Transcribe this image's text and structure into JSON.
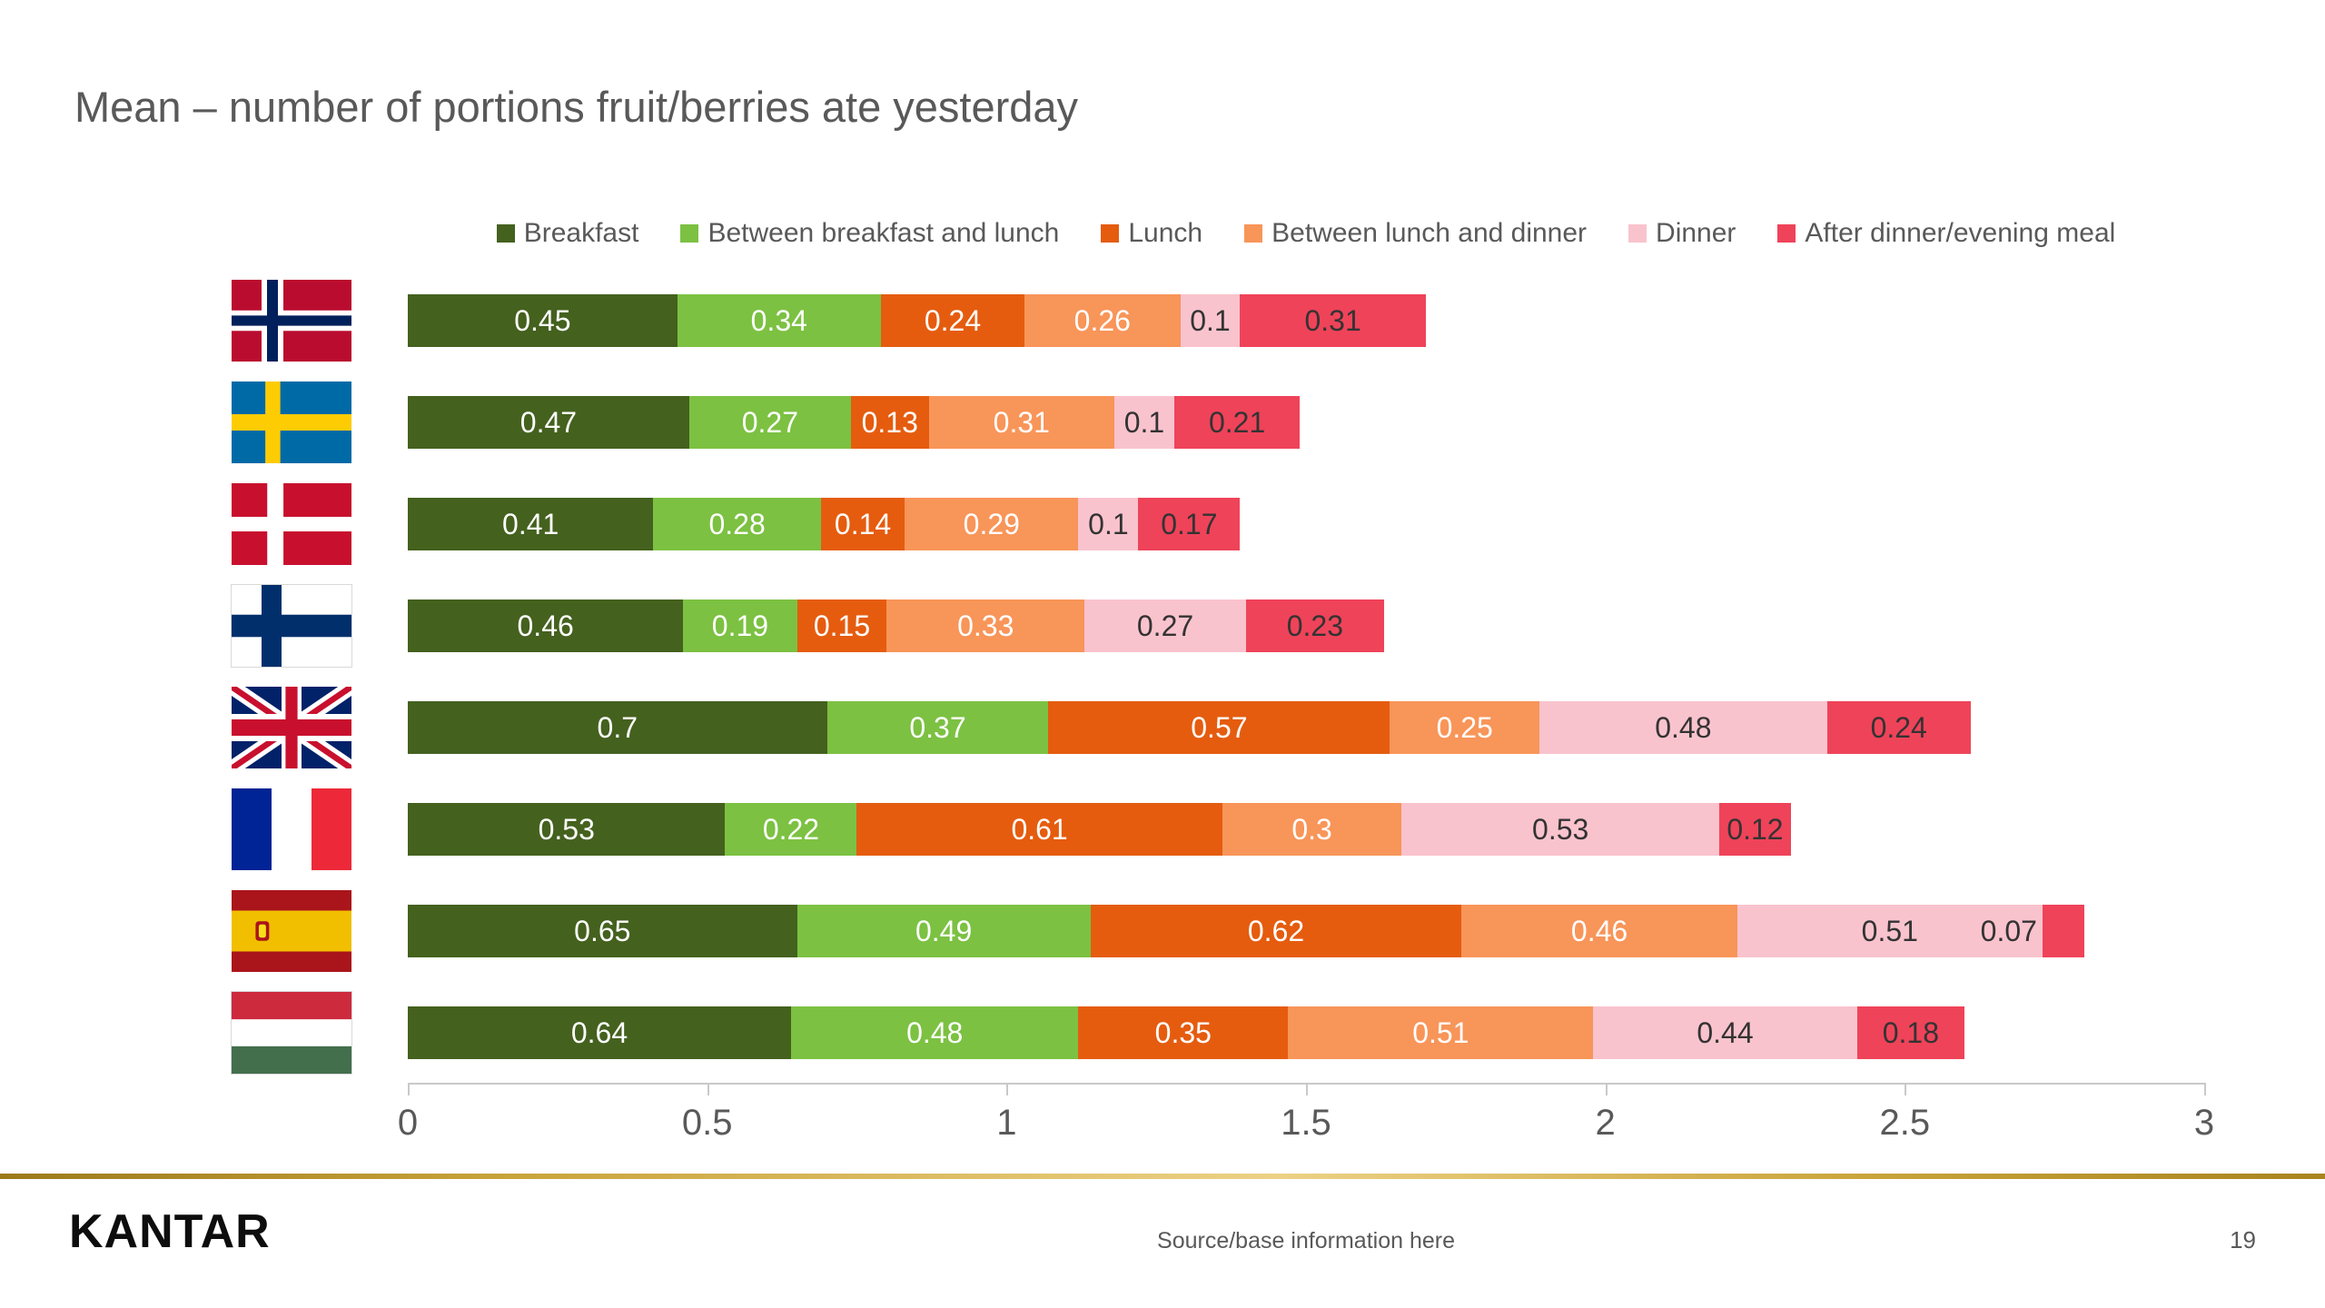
{
  "title": "Mean – number of portions fruit/berries ate yesterday",
  "chart_data": {
    "type": "bar",
    "stacked": true,
    "orientation": "horizontal",
    "title": "Mean – number of portions fruit/berries ate yesterday",
    "categories": [
      "Norway",
      "Sweden",
      "Denmark",
      "Finland",
      "United Kingdom",
      "France",
      "Spain",
      "Hungary"
    ],
    "series": [
      {
        "name": "Breakfast",
        "color": "#44611e",
        "label_color": "#ffffff",
        "values": [
          0.45,
          0.47,
          0.41,
          0.46,
          0.7,
          0.53,
          0.65,
          0.64
        ]
      },
      {
        "name": "Between breakfast and lunch",
        "color": "#7cc142",
        "label_color": "#ffffff",
        "values": [
          0.34,
          0.27,
          0.28,
          0.19,
          0.37,
          0.22,
          0.49,
          0.48
        ]
      },
      {
        "name": "Lunch",
        "color": "#e55c0f",
        "label_color": "#ffffff",
        "values": [
          0.24,
          0.13,
          0.14,
          0.15,
          0.57,
          0.61,
          0.62,
          0.35
        ]
      },
      {
        "name": "Between lunch and dinner",
        "color": "#f89559",
        "label_color": "#ffffff",
        "values": [
          0.26,
          0.31,
          0.29,
          0.33,
          0.25,
          0.3,
          0.46,
          0.51
        ]
      },
      {
        "name": "Dinner",
        "color": "#f9c3cd",
        "label_color": "#333333",
        "values": [
          0.1,
          0.1,
          0.1,
          0.27,
          0.48,
          0.53,
          0.51,
          0.44
        ]
      },
      {
        "name": "After dinner/evening meal",
        "color": "#ef4359",
        "label_color": "#333333",
        "values": [
          0.31,
          0.21,
          0.17,
          0.23,
          0.24,
          0.12,
          0.07,
          0.18
        ]
      }
    ],
    "xlim": [
      0,
      3
    ],
    "xticks": [
      0,
      0.5,
      1,
      1.5,
      2,
      2.5,
      3
    ],
    "legend_position": "top",
    "grid": false
  },
  "footer": {
    "logo": "KANTAR",
    "source": "Source/base information here",
    "page": "19"
  }
}
